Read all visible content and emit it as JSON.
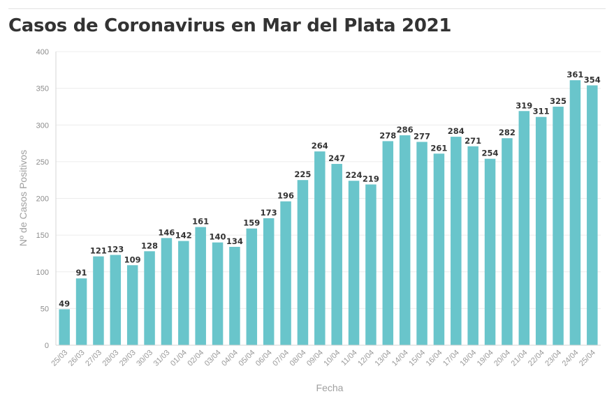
{
  "chart_data": {
    "type": "bar",
    "title": "Casos de Coronavirus en Mar del Plata 2021",
    "xlabel": "Fecha",
    "ylabel": "Nº de Casos Positivos",
    "ylim": [
      0,
      400
    ],
    "yticks": [
      0,
      50,
      100,
      150,
      200,
      250,
      300,
      350,
      400
    ],
    "grid": true,
    "bar_color": "#69c5cb",
    "categories": [
      "25/03",
      "26/03",
      "27/03",
      "28/03",
      "29/03",
      "30/03",
      "31/03",
      "01/04",
      "02/04",
      "03/04",
      "04/04",
      "05/04",
      "06/04",
      "07/04",
      "08/04",
      "09/04",
      "10/04",
      "11/04",
      "12/04",
      "13/04",
      "14/04",
      "15/04",
      "16/04",
      "17/04",
      "18/04",
      "19/04",
      "20/04",
      "21/04",
      "22/04",
      "23/04",
      "24/04",
      "25/04"
    ],
    "values": [
      49,
      91,
      121,
      123,
      109,
      128,
      146,
      142,
      161,
      140,
      134,
      159,
      173,
      196,
      225,
      264,
      247,
      224,
      219,
      278,
      286,
      277,
      261,
      284,
      271,
      254,
      282,
      319,
      311,
      325,
      361,
      354
    ]
  }
}
